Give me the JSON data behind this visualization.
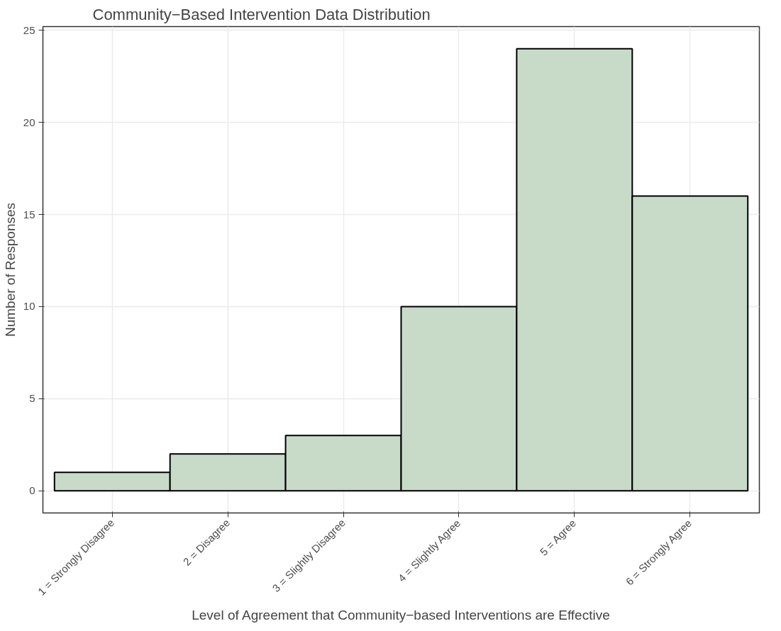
{
  "chart_data": {
    "type": "bar",
    "title": "Community−Based Intervention Data Distribution",
    "xlabel": "Level of Agreement that Community−based Interventions are Effective",
    "ylabel": "Number of Responses",
    "categories": [
      "1 = Strongly Disagree",
      "2 = Disagree",
      "3 = Slightly Disagree",
      "4 = Slightly Agree",
      "5 = Agree",
      "6 = Strongly Agree"
    ],
    "values": [
      1,
      2,
      3,
      10,
      24,
      16
    ],
    "color": "#c8dbc9",
    "ylim": [
      -1.2,
      25.2
    ],
    "yticks": [
      0,
      5,
      10,
      15,
      20,
      25
    ],
    "grid": true
  }
}
